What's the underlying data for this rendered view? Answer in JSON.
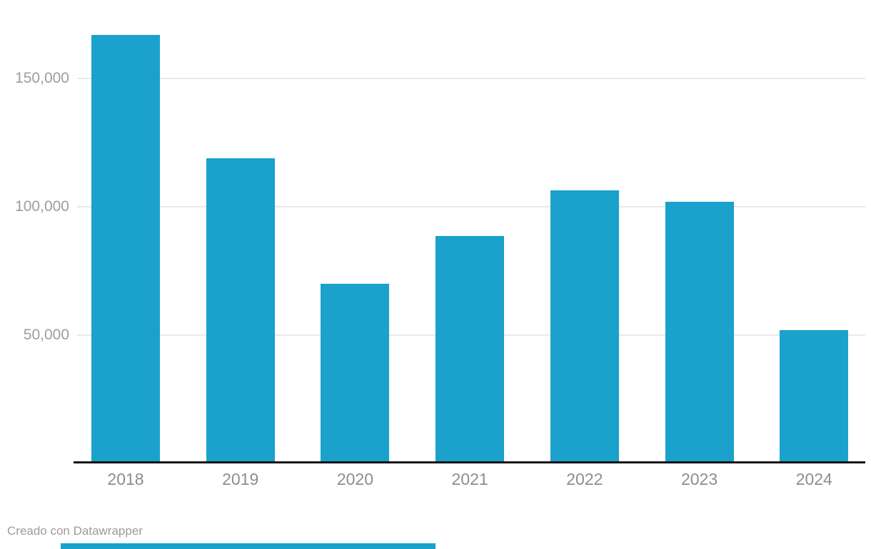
{
  "page": {
    "background": "#ffffff"
  },
  "chart_data": {
    "type": "bar",
    "title": "",
    "xlabel": "",
    "ylabel": "",
    "categories": [
      "2018",
      "2019",
      "2020",
      "2021",
      "2022",
      "2023",
      "2024"
    ],
    "values": [
      167000,
      119000,
      70000,
      88500,
      106500,
      102000,
      52000
    ],
    "yticks": [
      {
        "value": 50000,
        "label": "50,000"
      },
      {
        "value": 100000,
        "label": "100,000"
      },
      {
        "value": 150000,
        "label": "150,000"
      }
    ],
    "ylim": [
      0,
      180500
    ],
    "grid": true,
    "legend": "none",
    "bar_color": "#1aa1cc"
  },
  "colors": {
    "bar": "#1aa1cc",
    "gridline": "#e9e9e9",
    "axis_line": "#131313",
    "y_tick_text": "#9d9d9d",
    "x_tick_text": "#8d8d8d",
    "attribution_text": "#9b9b9b"
  },
  "footer": {
    "attribution": "Creado con Datawrapper"
  }
}
